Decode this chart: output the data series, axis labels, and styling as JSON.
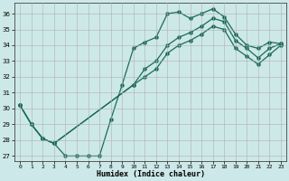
{
  "background_color": "#cde8e8",
  "grid_color": "#b0b0b0",
  "line_color": "#1a6b5a",
  "xlabel": "Humidex (Indice chaleur)",
  "xlim": [
    -0.5,
    23.5
  ],
  "ylim": [
    26.7,
    36.7
  ],
  "yticks": [
    27,
    28,
    29,
    30,
    31,
    32,
    33,
    34,
    35,
    36
  ],
  "xticks": [
    0,
    1,
    2,
    3,
    4,
    5,
    6,
    7,
    8,
    9,
    10,
    11,
    12,
    13,
    14,
    15,
    16,
    17,
    18,
    19,
    20,
    21,
    22,
    23
  ],
  "line1_x": [
    0,
    1,
    2,
    3,
    4,
    5,
    6,
    7,
    8,
    9,
    10,
    11,
    12,
    13,
    14,
    15,
    16,
    17,
    18,
    19,
    20,
    21,
    22,
    23
  ],
  "line1_y": [
    30.2,
    29.0,
    28.1,
    27.8,
    27.0,
    27.0,
    27.0,
    27.0,
    29.3,
    31.5,
    33.8,
    34.2,
    34.5,
    36.0,
    36.1,
    35.7,
    36.0,
    36.3,
    35.8,
    34.7,
    34.0,
    33.8,
    34.2,
    34.1
  ],
  "line2_x": [
    0,
    1,
    2,
    3,
    10,
    11,
    12,
    13,
    14,
    15,
    16,
    17,
    18,
    19,
    20,
    21,
    22,
    23
  ],
  "line2_y": [
    30.2,
    29.0,
    28.1,
    27.8,
    31.5,
    32.5,
    33.0,
    34.0,
    34.5,
    34.8,
    35.2,
    35.7,
    35.5,
    34.3,
    33.8,
    33.2,
    33.8,
    34.1
  ],
  "line3_x": [
    0,
    1,
    2,
    3,
    10,
    11,
    12,
    13,
    14,
    15,
    16,
    17,
    18,
    19,
    20,
    21,
    22,
    23
  ],
  "line3_y": [
    30.2,
    29.0,
    28.1,
    27.8,
    31.5,
    32.0,
    32.5,
    33.5,
    34.0,
    34.3,
    34.7,
    35.2,
    35.0,
    33.8,
    33.3,
    32.8,
    33.4,
    34.0
  ]
}
